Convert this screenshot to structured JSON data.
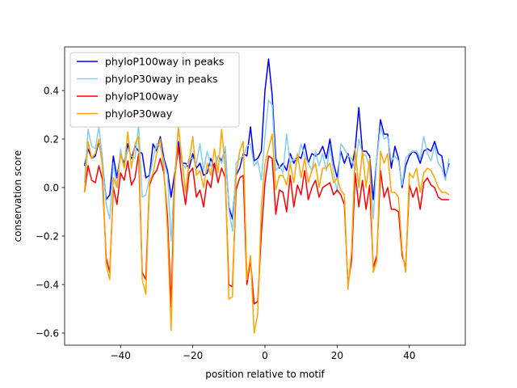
{
  "chart_data": {
    "type": "line",
    "title": "",
    "xlabel": "position relative to motif",
    "ylabel": "conservation score",
    "xlim": [
      -55.5,
      55.5
    ],
    "ylim": [
      -0.65,
      0.58
    ],
    "xticks": [
      -40,
      -20,
      0,
      20,
      40
    ],
    "yticks": [
      -0.6,
      -0.4,
      -0.2,
      0.0,
      0.2,
      0.4
    ],
    "xtick_labels": [
      "−40",
      "−20",
      "0",
      "20",
      "40"
    ],
    "ytick_labels": [
      "−0.6",
      "−0.4",
      "−0.2",
      "0.0",
      "0.2",
      "0.4"
    ],
    "grid": false,
    "legend_position": "upper-left",
    "x_start": -50,
    "x_step": 1,
    "series": [
      {
        "name": "phyloP100way in peaks",
        "color": "#0000ff",
        "values": [
          0.09,
          0.16,
          0.12,
          0.13,
          0.19,
          0.1,
          -0.05,
          -0.03,
          0.13,
          0.04,
          0.14,
          0.1,
          0.18,
          0.12,
          0.17,
          0.15,
          0.14,
          0.04,
          0.05,
          0.18,
          0.15,
          0.21,
          0.12,
          0.07,
          -0.04,
          0.06,
          0.19,
          0.1,
          0.1,
          0.08,
          0.14,
          0.08,
          0.1,
          0.05,
          0.06,
          0.12,
          0.08,
          0.13,
          0.11,
          0.16,
          -0.08,
          -0.13,
          0.05,
          0.08,
          0.14,
          0.13,
          0.25,
          0.11,
          0.12,
          0.15,
          0.4,
          0.53,
          0.38,
          0.12,
          0.08,
          0.1,
          0.07,
          0.14,
          0.1,
          0.13,
          0.12,
          0.18,
          0.1,
          0.14,
          0.13,
          0.14,
          0.17,
          0.12,
          0.2,
          0.1,
          0.04,
          0.15,
          0.1,
          0.14,
          0.08,
          0.16,
          0.33,
          0.15,
          0.15,
          0.13,
          -0.05,
          0.12,
          0.28,
          0.22,
          0.22,
          0.08,
          0.17,
          0.12,
          0.0,
          0.09,
          0.13,
          0.15,
          0.14,
          0.1,
          0.15,
          0.16,
          0.15,
          0.19,
          0.14,
          0.13,
          0.04,
          0.1
        ]
      },
      {
        "name": "phyloP30way in peaks",
        "color": "#87ceeb",
        "values": [
          0.02,
          0.24,
          0.17,
          0.16,
          0.25,
          0.12,
          -0.07,
          -0.13,
          0.1,
          0.0,
          0.16,
          0.08,
          0.16,
          0.13,
          0.12,
          0.26,
          -0.04,
          -0.03,
          0.04,
          0.12,
          0.18,
          0.17,
          0.11,
          0.05,
          -0.22,
          0.05,
          0.25,
          0.1,
          0.08,
          0.12,
          0.12,
          0.1,
          0.18,
          0.07,
          0.15,
          0.09,
          0.08,
          0.13,
          0.1,
          0.17,
          -0.09,
          -0.18,
          0.1,
          0.12,
          0.13,
          0.17,
          0.18,
          0.09,
          0.11,
          0.03,
          0.21,
          0.36,
          0.34,
          0.07,
          0.09,
          0.06,
          0.22,
          0.1,
          0.12,
          0.11,
          0.18,
          0.13,
          0.1,
          0.07,
          0.15,
          0.09,
          0.14,
          0.07,
          0.17,
          0.06,
          -0.02,
          0.18,
          0.16,
          0.13,
          0.12,
          0.07,
          0.2,
          0.14,
          0.13,
          0.08,
          -0.13,
          0.12,
          0.25,
          0.2,
          0.21,
          0.11,
          0.13,
          0.11,
          0.01,
          0.12,
          0.14,
          0.15,
          0.15,
          0.12,
          0.21,
          0.14,
          0.11,
          0.17,
          0.1,
          0.08,
          0.03,
          0.12
        ]
      },
      {
        "name": "phyloP100way",
        "color": "#ff0000",
        "values": [
          -0.02,
          0.09,
          0.03,
          0.02,
          0.09,
          0.03,
          -0.29,
          -0.35,
          0.0,
          -0.07,
          0.06,
          0.03,
          0.11,
          0.01,
          0.04,
          0.14,
          -0.35,
          -0.38,
          0.01,
          0.05,
          0.07,
          0.12,
          0.06,
          -0.12,
          -0.49,
          0.04,
          0.17,
          0.03,
          -0.07,
          0.06,
          0.08,
          -0.04,
          -0.01,
          -0.08,
          0.03,
          0.0,
          0.1,
          0.02,
          0.08,
          0.04,
          -0.4,
          -0.41,
          -0.01,
          0.04,
          0.05,
          -0.4,
          -0.3,
          -0.48,
          -0.47,
          -0.19,
          0.02,
          0.13,
          0.12,
          -0.11,
          -0.01,
          -0.02,
          -0.1,
          0.05,
          -0.08,
          0.01,
          -0.03,
          0.07,
          -0.05,
          0.0,
          0.03,
          -0.04,
          0.0,
          0.01,
          0.02,
          -0.03,
          -0.01,
          -0.03,
          -0.07,
          -0.4,
          -0.3,
          0.06,
          -0.08,
          0.03,
          -0.09,
          0.01,
          -0.33,
          -0.28,
          0.07,
          -0.04,
          0.0,
          -0.09,
          -0.09,
          -0.1,
          -0.28,
          -0.33,
          0.01,
          -0.04,
          0.0,
          -0.09,
          0.02,
          0.04,
          0.01,
          0.0,
          -0.04,
          -0.05,
          -0.05,
          -0.05
        ]
      },
      {
        "name": "phyloP30way",
        "color": "#ffa500",
        "values": [
          -0.02,
          0.19,
          0.12,
          0.14,
          0.2,
          0.08,
          -0.32,
          -0.38,
          0.04,
          0.0,
          0.14,
          0.08,
          0.23,
          0.08,
          0.18,
          0.21,
          -0.38,
          -0.44,
          0.02,
          0.06,
          0.14,
          0.2,
          0.08,
          -0.18,
          -0.59,
          0.02,
          0.25,
          0.12,
          -0.02,
          0.11,
          0.21,
          0.05,
          0.07,
          0.0,
          0.1,
          0.05,
          0.16,
          0.06,
          0.24,
          0.07,
          -0.46,
          -0.45,
          0.05,
          0.15,
          0.19,
          -0.38,
          -0.28,
          -0.6,
          -0.52,
          -0.08,
          0.1,
          0.16,
          0.22,
          -0.01,
          0.05,
          0.05,
          0.01,
          0.1,
          0.02,
          0.14,
          0.04,
          0.12,
          0.02,
          0.07,
          0.1,
          0.0,
          0.08,
          0.08,
          0.1,
          0.02,
          0.04,
          -0.01,
          -0.03,
          -0.42,
          -0.26,
          0.16,
          0.0,
          0.15,
          0.0,
          0.12,
          -0.35,
          -0.3,
          0.15,
          0.1,
          0.14,
          -0.02,
          -0.02,
          -0.04,
          -0.26,
          -0.35,
          0.06,
          0.04,
          0.08,
          -0.02,
          0.06,
          0.08,
          0.07,
          0.04,
          0.0,
          -0.02,
          -0.02,
          -0.03
        ]
      }
    ]
  }
}
